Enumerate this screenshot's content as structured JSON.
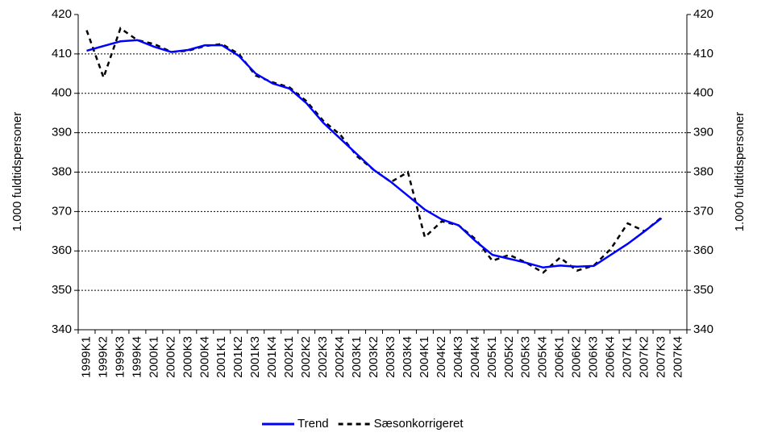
{
  "chart_data": {
    "type": "line",
    "ylabel": "1.000 fuldtidspersoner",
    "y2label": "1.000 fuldtidspersoner",
    "categories": [
      "1999K1",
      "1999K2",
      "1999K3",
      "1999K4",
      "2000K1",
      "2000K2",
      "2000K3",
      "2000K4",
      "2001K1",
      "2001K2",
      "2001K3",
      "2001K4",
      "2002K1",
      "2002K2",
      "2002K3",
      "2002K4",
      "2003K1",
      "2003K2",
      "2003K3",
      "2003K4",
      "2004K1",
      "2004K2",
      "2004K3",
      "2004K4",
      "2005K1",
      "2005K2",
      "2005K3",
      "2005K4",
      "2006K1",
      "2006K2",
      "2006K3",
      "2006K4",
      "2007K1",
      "2007K2",
      "2007K3",
      "2007K4"
    ],
    "series": [
      {
        "name": "Trend",
        "color": "#0000ff",
        "style": "solid",
        "values": [
          410.8,
          412,
          413.2,
          413.5,
          411.8,
          410.5,
          411,
          412.2,
          412.2,
          409.5,
          405,
          402.5,
          401.2,
          397.5,
          392.5,
          388.5,
          384.5,
          380.5,
          377.5,
          374,
          370.5,
          368,
          366.5,
          362.5,
          359,
          358,
          357,
          355.8,
          356.3,
          356,
          356.2,
          359,
          361.8,
          365,
          368.3,
          null
        ]
      },
      {
        "name": "Sæsonkorrigeret",
        "color": "#000000",
        "style": "dashed",
        "values": [
          416,
          404,
          416.5,
          413.5,
          412.5,
          410.5,
          410.8,
          412,
          412.5,
          410,
          404.5,
          402.8,
          401.5,
          398,
          393,
          389.5,
          384,
          380.5,
          377.5,
          380,
          363.5,
          367.5,
          366.5,
          363,
          357.5,
          359,
          357,
          354.5,
          358.3,
          355,
          356.3,
          360.5,
          367,
          365,
          368.5,
          null
        ]
      }
    ],
    "ylim": [
      340,
      420
    ],
    "yticks": [
      340,
      350,
      360,
      370,
      380,
      390,
      400,
      410,
      420
    ],
    "y2lim": [
      340,
      420
    ],
    "y2ticks": [
      340,
      350,
      360,
      370,
      380,
      390,
      400,
      410,
      420
    ],
    "grid": true,
    "legend": "bottom"
  }
}
